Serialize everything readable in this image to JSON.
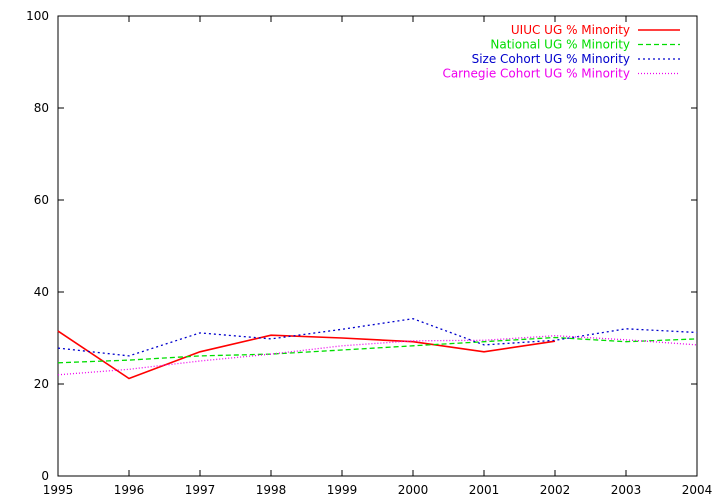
{
  "chart_data": {
    "type": "line",
    "title": "",
    "xlabel": "",
    "ylabel": "",
    "xlim": [
      1995,
      2004
    ],
    "ylim": [
      0,
      100
    ],
    "x_ticks": [
      "1995",
      "1996",
      "1997",
      "1998",
      "1999",
      "2000",
      "2001",
      "2002",
      "2003",
      "2004"
    ],
    "y_ticks": [
      "0",
      "20",
      "40",
      "60",
      "80",
      "100"
    ],
    "grid": false,
    "legend_position": "top-right",
    "series": [
      {
        "name": "UIUC UG % Minority",
        "color": "#ff0000",
        "dash": "solid",
        "x": [
          1995,
          1996,
          1997,
          1998,
          1999,
          2000,
          2001,
          2002
        ],
        "y": [
          31.5,
          21.2,
          27.0,
          30.6,
          30.0,
          29.2,
          27.0,
          29.3
        ]
      },
      {
        "name": "National UG % Minority",
        "color": "#00dd00",
        "dash": "dashed",
        "x": [
          1995,
          1996,
          1997,
          1998,
          1999,
          2000,
          2001,
          2002,
          2003,
          2004
        ],
        "y": [
          24.6,
          25.2,
          26.1,
          26.5,
          27.4,
          28.3,
          29.2,
          30.1,
          29.2,
          29.8
        ]
      },
      {
        "name": "Size Cohort UG % Minority",
        "color": "#0000cc",
        "dash": "dotted",
        "x": [
          1995,
          1996,
          1997,
          1998,
          1999,
          2000,
          2001,
          2002,
          2003,
          2004
        ],
        "y": [
          27.8,
          26.1,
          31.1,
          29.8,
          31.9,
          34.2,
          28.5,
          29.5,
          32.0,
          31.2
        ]
      },
      {
        "name": "Carnegie Cohort UG % Minority",
        "color": "#ee00ee",
        "dash": "finedotted",
        "x": [
          1995,
          1996,
          1997,
          1998,
          1999,
          2000,
          2001,
          2002,
          2003,
          2004
        ],
        "y": [
          22.0,
          23.2,
          25.0,
          26.5,
          28.3,
          29.4,
          29.5,
          30.5,
          29.6,
          28.5
        ]
      }
    ]
  }
}
